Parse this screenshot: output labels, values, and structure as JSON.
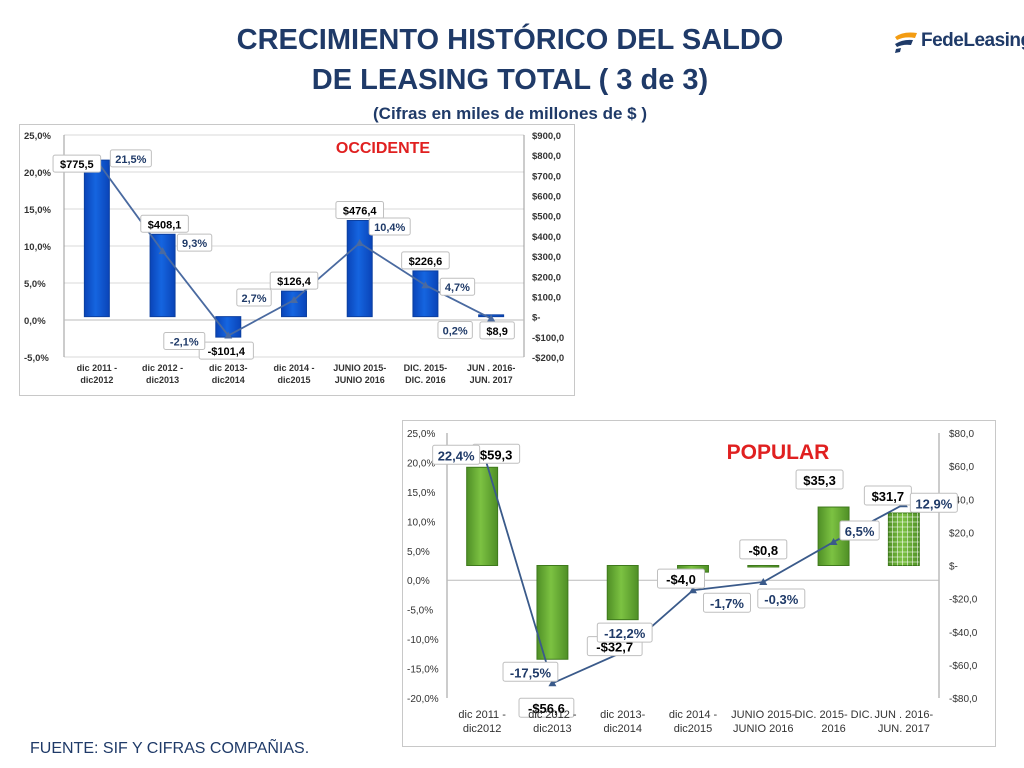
{
  "header": {
    "title_line1": "CRECIMIENTO HISTÓRICO DEL SALDO",
    "title_line2": "DE LEASING TOTAL  ( 3 de 3)",
    "subtitle": "(Cifras en miles de millones de $ )"
  },
  "logo": {
    "text": "FedeLeasing",
    "colors": {
      "blue": "#1f3a68",
      "orange": "#f39c12"
    }
  },
  "footer": {
    "text": "FUENTE: SIF Y CIFRAS COMPAÑIAS."
  },
  "chart_data": [
    {
      "type": "bar",
      "title": "OCCIDENTE",
      "categories": [
        [
          "dic 2011 -",
          "dic2012"
        ],
        [
          "dic 2012 -",
          "dic2013"
        ],
        [
          "dic 2013-",
          "dic2014"
        ],
        [
          "dic 2014 -",
          "dic2015"
        ],
        [
          "JUNIO 2015-",
          "JUNIO 2016"
        ],
        [
          "DIC. 2015-",
          "DIC. 2016"
        ],
        [
          "JUN . 2016-",
          "JUN. 2017"
        ]
      ],
      "series": [
        {
          "kind": "bar",
          "axis": "right",
          "values": [
            775.5,
            408.1,
            -101.4,
            126.4,
            476.4,
            226.6,
            8.9
          ],
          "labels": [
            "$775,5",
            "$408,1",
            "-$101,4",
            "$126,4",
            "$476,4",
            "$226,6",
            "$8,9"
          ]
        },
        {
          "kind": "line",
          "axis": "left",
          "values": [
            21.5,
            9.3,
            -2.1,
            2.7,
            10.4,
            4.7,
            0.2
          ],
          "labels": [
            "21,5%",
            "9,3%",
            "-2,1%",
            "2,7%",
            "10,4%",
            "4,7%",
            "0,2%"
          ]
        }
      ],
      "left_axis": {
        "min": -5,
        "max": 25,
        "ticks": [
          25,
          20,
          15,
          10,
          5,
          0,
          -5
        ],
        "tick_labels": [
          "25,0%",
          "20,0%",
          "15,0%",
          "10,0%",
          "5,0%",
          "0,0%",
          "-5,0%"
        ]
      },
      "right_axis": {
        "min": -200,
        "max": 900,
        "ticks": [
          900,
          800,
          700,
          600,
          500,
          400,
          300,
          200,
          100,
          0,
          -100,
          -200
        ],
        "tick_labels": [
          "$900,0",
          "$800,0",
          "$700,0",
          "$600,0",
          "$500,0",
          "$400,0",
          "$300,0",
          "$200,0",
          "$100,0",
          "$-",
          "-$100,0",
          "-$200,0"
        ]
      },
      "colors": {
        "bar": "#1565e0",
        "line": "#4a6aa0",
        "title": "#e02020",
        "label": "#000000",
        "pct": "#1f3a68"
      },
      "grid": true
    },
    {
      "type": "bar",
      "title": "POPULAR",
      "categories": [
        [
          "dic 2011 -",
          "dic2012"
        ],
        [
          "dic 2012 -",
          "dic2013"
        ],
        [
          "dic 2013-",
          "dic2014"
        ],
        [
          "dic 2014 -",
          "dic2015"
        ],
        [
          "JUNIO 2015-",
          "JUNIO 2016"
        ],
        [
          "DIC. 2015- DIC.",
          "2016"
        ],
        [
          "JUN . 2016-",
          "JUN. 2017"
        ]
      ],
      "series": [
        {
          "kind": "bar",
          "axis": "right",
          "values": [
            59.3,
            -56.6,
            -32.7,
            -4.0,
            -0.8,
            35.3,
            31.7
          ],
          "labels": [
            "$59,3",
            "-$56,6",
            "-$32,7",
            "-$4,0",
            "-$0,8",
            "$35,3",
            "$31,7"
          ]
        },
        {
          "kind": "line",
          "axis": "left",
          "values": [
            22.4,
            -17.5,
            -12.2,
            -1.7,
            -0.3,
            6.5,
            12.9
          ],
          "labels": [
            "22,4%",
            "-17,5%",
            "-12,2%",
            "-1,7%",
            "-0,3%",
            "6,5%",
            "12,9%"
          ]
        }
      ],
      "left_axis": {
        "min": -20,
        "max": 25,
        "ticks": [
          25,
          20,
          15,
          10,
          5,
          0,
          -5,
          -10,
          -15,
          -20
        ],
        "tick_labels": [
          "25,0%",
          "20,0%",
          "15,0%",
          "10,0%",
          "5,0%",
          "0,0%",
          "-5,0%",
          "-10,0%",
          "-15,0%",
          "-20,0%"
        ]
      },
      "right_axis": {
        "min": -80,
        "max": 80,
        "ticks": [
          80,
          60,
          40,
          20,
          0,
          -20,
          -40,
          -60,
          -80
        ],
        "tick_labels": [
          "$80,0",
          "$60,0",
          "$40,0",
          "$20,0",
          "$-",
          "-$20,0",
          "-$40,0",
          "-$60,0",
          "-$80,0"
        ]
      },
      "colors": {
        "bar": "#7cc242",
        "line": "#3a5a8a",
        "title": "#e02020",
        "label": "#000000",
        "pct": "#1f3a68"
      },
      "grid": false
    }
  ]
}
